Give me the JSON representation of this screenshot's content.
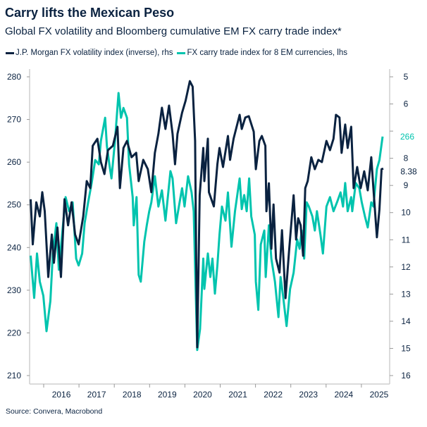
{
  "chart_data": {
    "type": "line",
    "title": "Carry lifts the Mexican Peso",
    "subtitle": "Global FX volatility and Bloomberg cumulative EM FX carry trade index*",
    "source": "Source: Convera, Macrobond",
    "x_tick_labels": [
      "2016",
      "2017",
      "2018",
      "2019",
      "2020",
      "2021",
      "2022",
      "2023",
      "2024",
      "2025"
    ],
    "xlim": [
      2015.6,
      2025.75
    ],
    "left_axis": {
      "ylim": [
        210,
        280
      ],
      "ticks": [
        210,
        220,
        230,
        240,
        250,
        260,
        270,
        280
      ]
    },
    "right_axis": {
      "ylim": [
        5,
        16
      ],
      "inverted": true,
      "ticks": [
        5,
        6,
        7,
        8,
        9,
        10,
        11,
        12,
        13,
        14,
        15,
        16
      ]
    },
    "grid": false,
    "legend_position": "top",
    "series": [
      {
        "name": "J.P. Morgan FX volatility index (inverse), rhs",
        "axis": "right",
        "color": "#0a2240",
        "end_label": "8.38",
        "points": [
          [
            2015.63,
            9.51
          ],
          [
            2015.69,
            11.17
          ],
          [
            2015.79,
            9.62
          ],
          [
            2015.89,
            10.14
          ],
          [
            2015.96,
            9.25
          ],
          [
            2016.03,
            9.95
          ],
          [
            2016.13,
            12.37
          ],
          [
            2016.23,
            10.81
          ],
          [
            2016.29,
            11.85
          ],
          [
            2016.39,
            10.55
          ],
          [
            2016.49,
            12.37
          ],
          [
            2016.59,
            9.51
          ],
          [
            2016.69,
            10.47
          ],
          [
            2016.79,
            9.62
          ],
          [
            2016.89,
            10.81
          ],
          [
            2016.99,
            11.17
          ],
          [
            2017.12,
            10.14
          ],
          [
            2017.22,
            8.84
          ],
          [
            2017.32,
            9.1
          ],
          [
            2017.39,
            7.54
          ],
          [
            2017.52,
            7.28
          ],
          [
            2017.62,
            8.14
          ],
          [
            2017.72,
            8.58
          ],
          [
            2017.82,
            7.7
          ],
          [
            2017.96,
            7.54
          ],
          [
            2018.09,
            6.84
          ],
          [
            2018.16,
            9.1
          ],
          [
            2018.26,
            7.62
          ],
          [
            2018.36,
            7.36
          ],
          [
            2018.49,
            7.96
          ],
          [
            2018.62,
            7.8
          ],
          [
            2018.69,
            8.84
          ],
          [
            2018.82,
            8.06
          ],
          [
            2018.95,
            8.4
          ],
          [
            2019.05,
            9.25
          ],
          [
            2019.15,
            7.8
          ],
          [
            2019.25,
            7.1
          ],
          [
            2019.35,
            6.14
          ],
          [
            2019.45,
            6.92
          ],
          [
            2019.55,
            6.06
          ],
          [
            2019.65,
            7.1
          ],
          [
            2019.72,
            8.22
          ],
          [
            2019.79,
            7.1
          ],
          [
            2019.92,
            6.32
          ],
          [
            2020.02,
            5.88
          ],
          [
            2020.14,
            5.16
          ],
          [
            2020.22,
            5.36
          ],
          [
            2020.29,
            7.36
          ],
          [
            2020.32,
            11.69
          ],
          [
            2020.35,
            14.96
          ],
          [
            2020.42,
            9.36
          ],
          [
            2020.52,
            7.62
          ],
          [
            2020.55,
            8.84
          ],
          [
            2020.65,
            7.28
          ],
          [
            2020.68,
            9.25
          ],
          [
            2020.82,
            9.77
          ],
          [
            2020.92,
            8.22
          ],
          [
            2020.98,
            7.62
          ],
          [
            2021.08,
            8.32
          ],
          [
            2021.22,
            7.18
          ],
          [
            2021.28,
            8.06
          ],
          [
            2021.38,
            7.28
          ],
          [
            2021.55,
            6.4
          ],
          [
            2021.61,
            6.92
          ],
          [
            2021.71,
            6.5
          ],
          [
            2021.81,
            6.45
          ],
          [
            2021.95,
            7.02
          ],
          [
            2022.01,
            8.4
          ],
          [
            2022.11,
            7.36
          ],
          [
            2022.18,
            7.18
          ],
          [
            2022.28,
            7.54
          ],
          [
            2022.31,
            9.95
          ],
          [
            2022.38,
            8.92
          ],
          [
            2022.45,
            11.33
          ],
          [
            2022.51,
            9.7
          ],
          [
            2022.58,
            11.69
          ],
          [
            2022.68,
            12.21
          ],
          [
            2022.75,
            10.65
          ],
          [
            2022.85,
            13.15
          ],
          [
            2022.95,
            11.43
          ],
          [
            2023.08,
            9.36
          ],
          [
            2023.15,
            10.99
          ],
          [
            2023.21,
            10.21
          ],
          [
            2023.28,
            10.47
          ],
          [
            2023.35,
            11.59
          ],
          [
            2023.41,
            9.1
          ],
          [
            2023.48,
            8.84
          ],
          [
            2023.58,
            7.96
          ],
          [
            2023.68,
            8.4
          ],
          [
            2023.78,
            8.06
          ],
          [
            2023.88,
            8.14
          ],
          [
            2024.01,
            7.36
          ],
          [
            2024.11,
            7.7
          ],
          [
            2024.21,
            7.28
          ],
          [
            2024.28,
            6.4
          ],
          [
            2024.38,
            6.5
          ],
          [
            2024.44,
            7.8
          ],
          [
            2024.54,
            6.76
          ],
          [
            2024.61,
            7.62
          ],
          [
            2024.71,
            6.84
          ],
          [
            2024.78,
            9.1
          ],
          [
            2024.88,
            8.32
          ],
          [
            2024.98,
            9.1
          ],
          [
            2025.08,
            8.48
          ],
          [
            2025.18,
            9.18
          ],
          [
            2025.28,
            7.96
          ],
          [
            2025.34,
            9.1
          ],
          [
            2025.44,
            10.91
          ],
          [
            2025.51,
            9.88
          ],
          [
            2025.57,
            8.4
          ],
          [
            2025.62,
            8.38
          ]
        ]
      },
      {
        "name": "FX carry trade index for 8 EM currencies, lhs",
        "axis": "left",
        "color": "#00c4ae",
        "end_label": "266",
        "points": [
          [
            2015.63,
            238.1
          ],
          [
            2015.73,
            228.2
          ],
          [
            2015.81,
            238.6
          ],
          [
            2015.89,
            232.0
          ],
          [
            2015.99,
            228.7
          ],
          [
            2016.08,
            220.4
          ],
          [
            2016.19,
            227.5
          ],
          [
            2016.26,
            238.6
          ],
          [
            2016.36,
            245.7
          ],
          [
            2016.43,
            234.8
          ],
          [
            2016.52,
            243.0
          ],
          [
            2016.62,
            251.8
          ],
          [
            2016.72,
            248.5
          ],
          [
            2016.82,
            250.6
          ],
          [
            2016.92,
            237.4
          ],
          [
            2016.99,
            235.8
          ],
          [
            2017.09,
            238.6
          ],
          [
            2017.16,
            245.7
          ],
          [
            2017.26,
            250.6
          ],
          [
            2017.36,
            255.1
          ],
          [
            2017.46,
            260.5
          ],
          [
            2017.56,
            259.5
          ],
          [
            2017.62,
            265.0
          ],
          [
            2017.74,
            270.4
          ],
          [
            2017.79,
            263.8
          ],
          [
            2017.86,
            259.5
          ],
          [
            2017.92,
            256.2
          ],
          [
            2018.02,
            265.0
          ],
          [
            2018.12,
            276.2
          ],
          [
            2018.19,
            270.4
          ],
          [
            2018.26,
            272.7
          ],
          [
            2018.36,
            270.4
          ],
          [
            2018.42,
            259.5
          ],
          [
            2018.52,
            251.8
          ],
          [
            2018.55,
            245.2
          ],
          [
            2018.63,
            251.8
          ],
          [
            2018.69,
            233.6
          ],
          [
            2018.75,
            232.0
          ],
          [
            2018.85,
            241.4
          ],
          [
            2018.92,
            245.2
          ],
          [
            2018.99,
            248.5
          ],
          [
            2019.05,
            250.6
          ],
          [
            2019.15,
            256.7
          ],
          [
            2019.25,
            249.6
          ],
          [
            2019.35,
            253.4
          ],
          [
            2019.45,
            246.3
          ],
          [
            2019.59,
            257.9
          ],
          [
            2019.65,
            256.2
          ],
          [
            2019.75,
            245.7
          ],
          [
            2019.85,
            250.6
          ],
          [
            2019.92,
            253.9
          ],
          [
            2019.99,
            249.6
          ],
          [
            2020.09,
            256.7
          ],
          [
            2020.19,
            252.9
          ],
          [
            2020.25,
            248.5
          ],
          [
            2020.3,
            232.0
          ],
          [
            2020.35,
            216.0
          ],
          [
            2020.43,
            220.9
          ],
          [
            2020.52,
            237.4
          ],
          [
            2020.55,
            230.3
          ],
          [
            2020.65,
            238.6
          ],
          [
            2020.72,
            233.1
          ],
          [
            2020.78,
            237.4
          ],
          [
            2020.85,
            229.2
          ],
          [
            2020.92,
            235.8
          ],
          [
            2020.98,
            243.0
          ],
          [
            2021.05,
            249.6
          ],
          [
            2021.15,
            246.3
          ],
          [
            2021.22,
            252.9
          ],
          [
            2021.32,
            240.2
          ],
          [
            2021.42,
            248.5
          ],
          [
            2021.55,
            256.2
          ],
          [
            2021.61,
            249.0
          ],
          [
            2021.68,
            252.3
          ],
          [
            2021.75,
            248.5
          ],
          [
            2021.82,
            256.2
          ],
          [
            2021.88,
            247.3
          ],
          [
            2021.98,
            243.0
          ],
          [
            2022.01,
            232.0
          ],
          [
            2022.08,
            225.4
          ],
          [
            2022.15,
            240.7
          ],
          [
            2022.25,
            244.0
          ],
          [
            2022.29,
            233.1
          ],
          [
            2022.38,
            245.2
          ],
          [
            2022.45,
            237.4
          ],
          [
            2022.55,
            232.0
          ],
          [
            2022.65,
            223.7
          ],
          [
            2022.71,
            233.1
          ],
          [
            2022.78,
            228.7
          ],
          [
            2022.88,
            221.6
          ],
          [
            2022.98,
            230.3
          ],
          [
            2023.08,
            234.1
          ],
          [
            2023.18,
            241.9
          ],
          [
            2023.25,
            239.7
          ],
          [
            2023.31,
            244.0
          ],
          [
            2023.38,
            237.4
          ],
          [
            2023.45,
            250.6
          ],
          [
            2023.51,
            249.6
          ],
          [
            2023.61,
            247.3
          ],
          [
            2023.68,
            244.0
          ],
          [
            2023.74,
            248.5
          ],
          [
            2023.84,
            243.0
          ],
          [
            2023.91,
            238.6
          ],
          [
            2024.01,
            249.6
          ],
          [
            2024.11,
            251.8
          ],
          [
            2024.21,
            248.5
          ],
          [
            2024.31,
            250.6
          ],
          [
            2024.41,
            252.9
          ],
          [
            2024.48,
            249.6
          ],
          [
            2024.54,
            255.1
          ],
          [
            2024.61,
            248.5
          ],
          [
            2024.71,
            251.8
          ],
          [
            2024.74,
            248.5
          ],
          [
            2024.84,
            255.1
          ],
          [
            2024.94,
            253.9
          ],
          [
            2025.01,
            250.6
          ],
          [
            2025.1,
            247.3
          ],
          [
            2025.18,
            244.7
          ],
          [
            2025.28,
            250.6
          ],
          [
            2025.34,
            249.6
          ],
          [
            2025.44,
            258.4
          ],
          [
            2025.51,
            260.5
          ],
          [
            2025.6,
            266.0
          ]
        ]
      }
    ]
  }
}
